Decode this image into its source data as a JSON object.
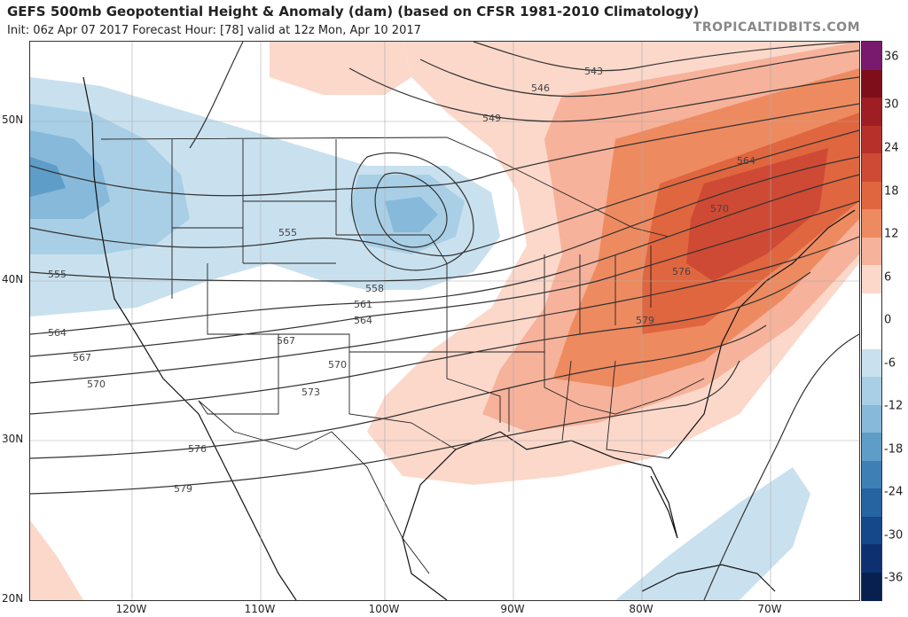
{
  "header": {
    "title": "GEFS 500mb Geopotential Height & Anomaly (dam) (based on CFSR 1981-2010 Climatology)",
    "subtitle": "Init: 06z Apr 07 2017   Forecast Hour: [78]   valid at 12z Mon, Apr 10 2017",
    "brand": "TROPICALTIDBITS.COM"
  },
  "axes": {
    "lat_labels": [
      "50N",
      "40N",
      "30N",
      "20N"
    ],
    "lon_labels": [
      "120W",
      "110W",
      "100W",
      "90W",
      "80W",
      "70W"
    ]
  },
  "colorbar": {
    "ticks": [
      "36",
      "30",
      "24",
      "18",
      "12",
      "6",
      "0",
      "-6",
      "-12",
      "-18",
      "-24",
      "-30",
      "-36"
    ],
    "colors": [
      "#7a1a6e",
      "#7e0f1a",
      "#9e1e24",
      "#b8302a",
      "#cf4a34",
      "#e0663f",
      "#ee8a60",
      "#f6b29a",
      "#fbd8ca",
      "#ffffff",
      "#ffffff",
      "#c9e1ef",
      "#a9cfe6",
      "#86b9da",
      "#5e9dc8",
      "#3e7fb5",
      "#2563a1",
      "#15488a",
      "#0d3170",
      "#07204f"
    ]
  },
  "contours": {
    "labels": [
      "543",
      "546",
      "549",
      "555",
      "558",
      "561",
      "564",
      "567",
      "570",
      "573",
      "576",
      "579"
    ]
  }
}
